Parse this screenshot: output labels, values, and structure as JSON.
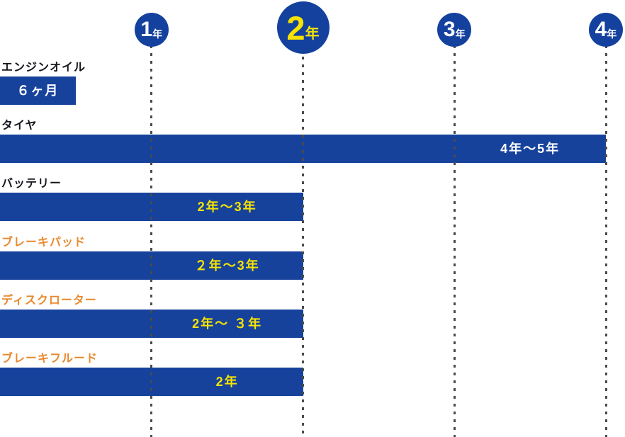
{
  "colors": {
    "bar_blue": "#17429c",
    "marker_blue": "#14419e",
    "value_yellow": "#f6e400",
    "label_orange": "#e8892d",
    "label_dark": "#16161d",
    "gridline_gray": "#4b4b4b",
    "background": "#ffffff"
  },
  "chart_data": {
    "type": "bar",
    "orientation": "horizontal",
    "unit": "years",
    "title": "",
    "axis": {
      "range_years": [
        0,
        4
      ],
      "gridlines": "dotted-vertical",
      "markers": [
        {
          "num": "1",
          "suffix": "年",
          "year": 1,
          "emphasized": false
        },
        {
          "num": "2",
          "suffix": "年",
          "year": 2,
          "emphasized": true
        },
        {
          "num": "3",
          "suffix": "年",
          "year": 3,
          "emphasized": false
        },
        {
          "num": "4",
          "suffix": "年",
          "year": 4,
          "emphasized": false
        }
      ]
    },
    "items": [
      {
        "label": "エンジンオイル",
        "label_style": "dark",
        "start_years": 0,
        "duration_years": 0.5,
        "value_label": "６ヶ月",
        "value_style": "white",
        "value_center_range": [
          0,
          0.5
        ]
      },
      {
        "label": "タイヤ",
        "label_style": "dark",
        "start_years": 0,
        "duration_years": 4,
        "value_label": "4年〜5年",
        "value_style": "white",
        "value_center_range": [
          3,
          4
        ]
      },
      {
        "label": "バッテリー",
        "label_style": "dark",
        "start_years": 0,
        "duration_years": 2,
        "value_label": "2年〜3年",
        "value_style": "yellow",
        "value_center_range": [
          1,
          2
        ]
      },
      {
        "label": "ブレーキパッド",
        "label_style": "orange",
        "start_years": 0,
        "duration_years": 2,
        "value_label": "２年〜3年",
        "value_style": "yellow",
        "value_center_range": [
          1,
          2
        ]
      },
      {
        "label": "ディスクローター",
        "label_style": "orange",
        "start_years": 0,
        "duration_years": 2,
        "value_label": "2年〜 ３年",
        "value_style": "yellow",
        "value_center_range": [
          1,
          2
        ]
      },
      {
        "label": "ブレーキフルード",
        "label_style": "orange",
        "start_years": 0,
        "duration_years": 2,
        "value_label": "2年",
        "value_style": "yellow",
        "value_center_range": [
          1,
          2
        ]
      }
    ]
  }
}
